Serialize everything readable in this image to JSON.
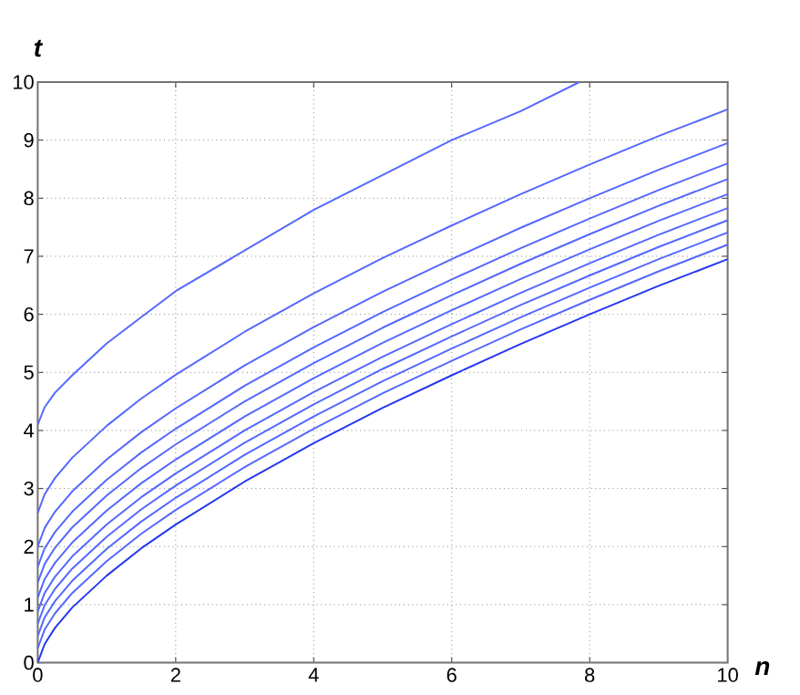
{
  "chart_data": {
    "type": "line",
    "xlabel": "n",
    "ylabel": "t",
    "xlim": [
      0,
      10
    ],
    "ylim": [
      0,
      10
    ],
    "xticks": [
      0,
      2,
      4,
      6,
      8,
      10
    ],
    "yticks": [
      0,
      1,
      2,
      3,
      4,
      5,
      6,
      7,
      8,
      9,
      10
    ],
    "grid": true,
    "x": [
      0,
      0.1,
      0.25,
      0.5,
      1,
      1.5,
      2,
      3,
      4,
      5,
      6,
      7,
      8,
      9,
      10
    ],
    "series": [
      {
        "color": "#5468ff",
        "x": [
          0,
          0.1,
          0.25,
          0.5,
          1,
          1.5,
          2,
          3,
          4,
          5,
          6,
          7,
          7.85
        ],
        "values": [
          4.1,
          4.4,
          4.65,
          4.95,
          5.5,
          5.95,
          6.4,
          7.1,
          7.8,
          8.4,
          9.0,
          9.5,
          10
        ]
      },
      {
        "color": "#5468ff",
        "values": [
          2.58,
          2.9,
          3.18,
          3.53,
          4.08,
          4.55,
          4.96,
          5.7,
          6.36,
          6.97,
          7.53,
          8.07,
          8.58,
          9.07,
          9.53
        ]
      },
      {
        "color": "#5468ff",
        "values": [
          2.0,
          2.32,
          2.6,
          2.95,
          3.5,
          3.97,
          4.38,
          5.12,
          5.78,
          6.39,
          6.95,
          7.49,
          8.0,
          8.49,
          8.95
        ]
      },
      {
        "color": "#5468ff",
        "values": [
          1.65,
          1.97,
          2.25,
          2.6,
          3.15,
          3.62,
          4.03,
          4.77,
          5.43,
          6.04,
          6.6,
          7.14,
          7.65,
          8.14,
          8.6
        ]
      },
      {
        "color": "#5468ff",
        "values": [
          1.38,
          1.7,
          1.98,
          2.33,
          2.88,
          3.35,
          3.76,
          4.5,
          5.16,
          5.77,
          6.33,
          6.87,
          7.38,
          7.87,
          8.33
        ]
      },
      {
        "color": "#5468ff",
        "values": [
          1.12,
          1.44,
          1.72,
          2.07,
          2.62,
          3.09,
          3.5,
          4.24,
          4.9,
          5.51,
          6.07,
          6.61,
          7.12,
          7.61,
          8.07
        ]
      },
      {
        "color": "#5468ff",
        "values": [
          0.88,
          1.2,
          1.48,
          1.83,
          2.38,
          2.85,
          3.26,
          4.0,
          4.66,
          5.27,
          5.83,
          6.37,
          6.88,
          7.37,
          7.83
        ]
      },
      {
        "color": "#5468ff",
        "values": [
          0.67,
          0.99,
          1.27,
          1.62,
          2.17,
          2.64,
          3.05,
          3.79,
          4.45,
          5.06,
          5.62,
          6.16,
          6.67,
          7.16,
          7.62
        ]
      },
      {
        "color": "#5468ff",
        "values": [
          0.46,
          0.78,
          1.06,
          1.41,
          1.96,
          2.43,
          2.84,
          3.58,
          4.24,
          4.85,
          5.41,
          5.95,
          6.46,
          6.95,
          7.41
        ]
      },
      {
        "color": "#5468ff",
        "values": [
          0.25,
          0.57,
          0.85,
          1.2,
          1.75,
          2.22,
          2.63,
          3.37,
          4.03,
          4.64,
          5.2,
          5.74,
          6.25,
          6.74,
          7.2
        ]
      },
      {
        "color": "#2438f0",
        "values": [
          0,
          0.32,
          0.6,
          0.95,
          1.5,
          1.97,
          2.38,
          3.12,
          3.78,
          4.39,
          4.95,
          5.49,
          6.0,
          6.49,
          6.95
        ]
      }
    ]
  }
}
